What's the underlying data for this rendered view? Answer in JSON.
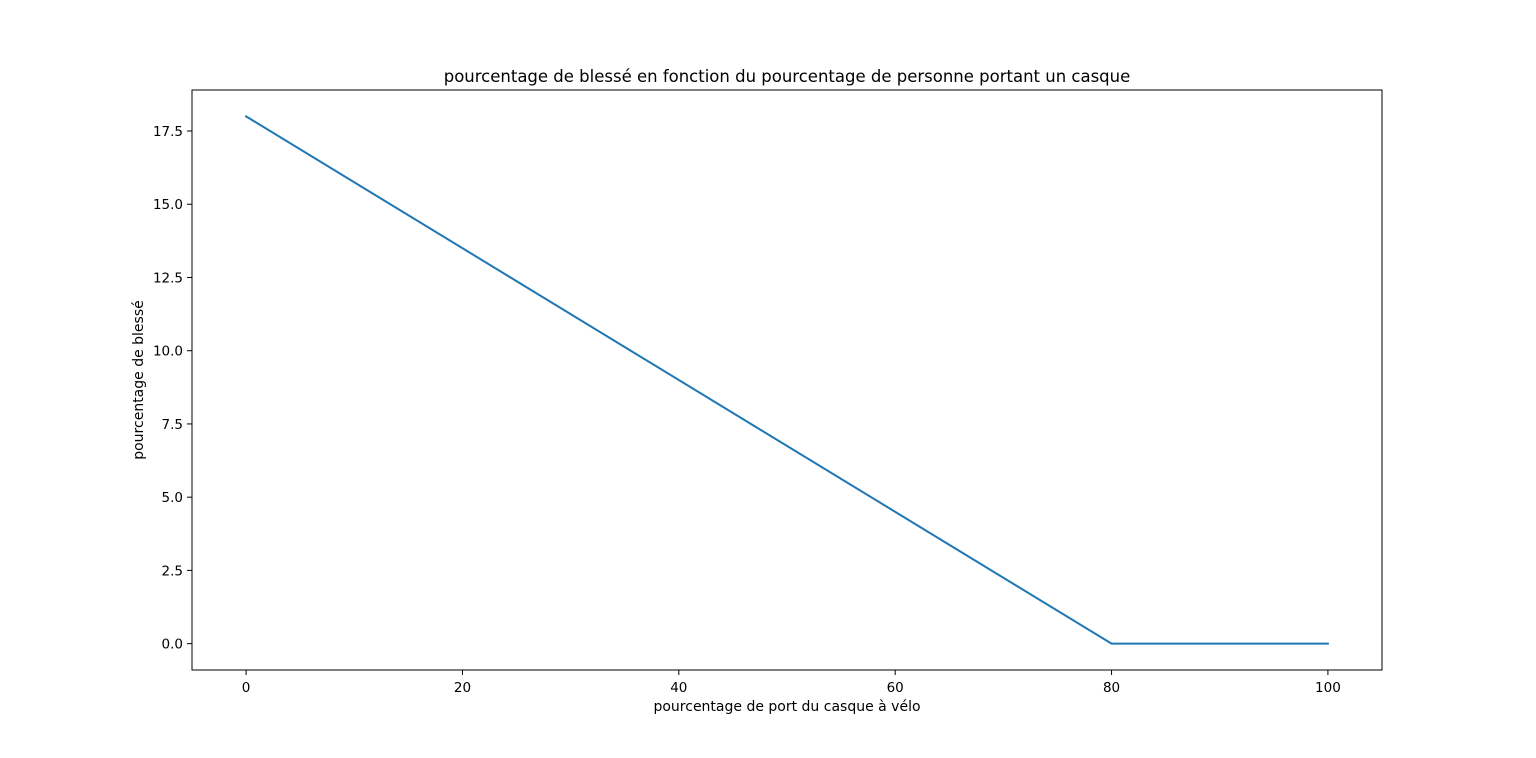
{
  "chart_data": {
    "type": "line",
    "title": "pourcentage de blessé en fonction du pourcentage de personne portant un casque",
    "xlabel": "pourcentage de port du casque à vélo",
    "ylabel": "pourcentage de blessé",
    "xlim": [
      -5,
      105
    ],
    "ylim": [
      -0.9,
      18.9
    ],
    "xticks": [
      0,
      20,
      40,
      60,
      80,
      100
    ],
    "xtick_labels": [
      "0",
      "20",
      "40",
      "60",
      "80",
      "100"
    ],
    "yticks": [
      0,
      2.5,
      5,
      7.5,
      10,
      12.5,
      15,
      17.5
    ],
    "ytick_labels": [
      "0.0",
      "2.5",
      "5.0",
      "7.5",
      "10.0",
      "12.5",
      "15.0",
      "17.5"
    ],
    "grid": false,
    "series": [
      {
        "color": "#1f77b4",
        "x": [
          0,
          80,
          100
        ],
        "y": [
          18,
          0,
          0
        ]
      }
    ]
  }
}
